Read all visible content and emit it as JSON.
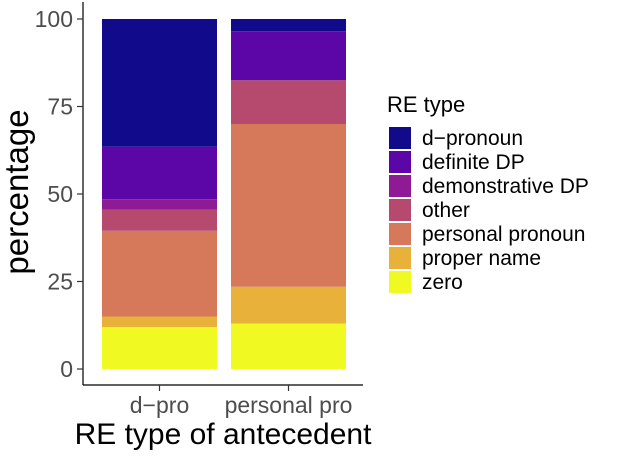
{
  "chart_data": {
    "type": "bar",
    "stacked": true,
    "xlabel": "RE type of antecedent",
    "ylabel": "percentage",
    "ylim": [
      0,
      100
    ],
    "yticks": [
      0,
      25,
      50,
      75,
      100
    ],
    "grid": false,
    "legend_position": "right",
    "legend_title": "RE type",
    "categories": [
      "d−pro",
      "personal pro"
    ],
    "series": [
      {
        "name": "zero",
        "color": "#F0F921",
        "values": [
          12,
          13
        ]
      },
      {
        "name": "proper name",
        "color": "#E8B23A",
        "values": [
          3,
          10.5
        ]
      },
      {
        "name": "personal pronoun",
        "color": "#D6785A",
        "values": [
          24.5,
          46.5
        ]
      },
      {
        "name": "other",
        "color": "#B5496E",
        "values": [
          6,
          12.5
        ]
      },
      {
        "name": "demonstrative DP",
        "color": "#8E1A96",
        "values": [
          3,
          0
        ]
      },
      {
        "name": "definite DP",
        "color": "#5C06A8",
        "values": [
          15,
          14
        ]
      },
      {
        "name": "d−pronoun",
        "color": "#110A8A",
        "values": [
          36.5,
          3.5
        ]
      }
    ],
    "legend_order": [
      "d−pronoun",
      "definite DP",
      "demonstrative DP",
      "other",
      "personal pronoun",
      "proper name",
      "zero"
    ]
  }
}
